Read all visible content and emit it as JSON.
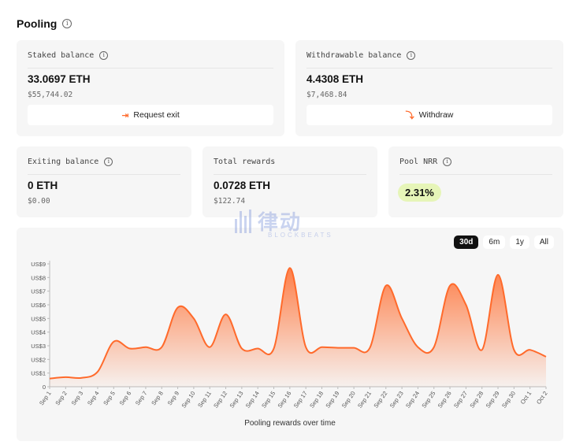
{
  "header": {
    "title": "Pooling"
  },
  "cards": {
    "staked": {
      "label": "Staked balance",
      "value": "33.0697 ETH",
      "usd": "$55,744.02",
      "action": "Request exit"
    },
    "withdrawable": {
      "label": "Withdrawable balance",
      "value": "4.4308 ETH",
      "usd": "$7,468.84",
      "action": "Withdraw"
    },
    "exiting": {
      "label": "Exiting balance",
      "value": "0 ETH",
      "usd": "$0.00"
    },
    "rewards": {
      "label": "Total rewards",
      "value": "0.0728 ETH",
      "usd": "$122.74"
    },
    "nrr": {
      "label": "Pool NRR",
      "value": "2.31%"
    }
  },
  "range_tabs": [
    "30d",
    "6m",
    "1y",
    "All"
  ],
  "active_range": "30d",
  "watermark": {
    "text": "律动",
    "sub": "BLOCKBEATS"
  },
  "colors": {
    "accent": "#ff6a2b",
    "pill": "#e6f5b8",
    "card_bg": "#f6f6f6"
  },
  "chart_data": {
    "type": "area",
    "title": "",
    "xlabel": "Pooling rewards over time",
    "ylabel": "",
    "ylim": [
      0,
      9
    ],
    "y_ticks": [
      "0",
      "US$1",
      "US$2",
      "US$3",
      "US$4",
      "US$5",
      "US$6",
      "US$7",
      "US$8",
      "US$9"
    ],
    "categories": [
      "Sep 1",
      "Sep 2",
      "Sep 3",
      "Sep 4",
      "Sep 5",
      "Sep 6",
      "Sep 7",
      "Sep 8",
      "Sep 9",
      "Sep 10",
      "Sep 11",
      "Sep 12",
      "Sep 13",
      "Sep 14",
      "Sep 15",
      "Sep 16",
      "Sep 17",
      "Sep 18",
      "Sep 19",
      "Sep 20",
      "Sep 21",
      "Sep 22",
      "Sep 23",
      "Sep 24",
      "Sep 25",
      "Sep 26",
      "Sep 27",
      "Sep 28",
      "Sep 29",
      "Sep 30",
      "Oct 1",
      "Oct 2"
    ],
    "values": [
      0.6,
      0.7,
      0.65,
      1.1,
      3.3,
      2.8,
      2.9,
      2.9,
      5.8,
      5.0,
      2.9,
      5.3,
      2.8,
      2.8,
      2.8,
      8.7,
      2.9,
      2.9,
      2.85,
      2.85,
      2.85,
      7.4,
      5.0,
      2.9,
      2.9,
      7.4,
      6.0,
      2.7,
      8.2,
      2.7,
      2.7,
      2.2
    ],
    "grid": false
  }
}
